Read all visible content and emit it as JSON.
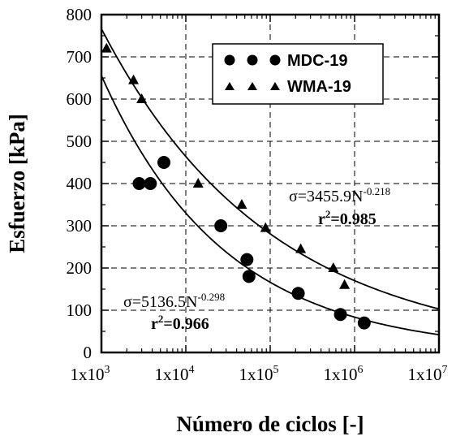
{
  "chart_data": {
    "type": "scatter",
    "xlabel": "Número de ciclos [-]",
    "ylabel": "Esfuerzo [kPa]",
    "xscale": "log",
    "xlim": [
      1000,
      10000000
    ],
    "ylim": [
      0,
      800
    ],
    "grid": true,
    "legend_position": "top-right",
    "x_tick_labels": [
      {
        "base": "1x10",
        "exp": "3"
      },
      {
        "base": "1x10",
        "exp": "4"
      },
      {
        "base": "1x10",
        "exp": "5"
      },
      {
        "base": "1x10",
        "exp": "6"
      },
      {
        "base": "1x10",
        "exp": "7"
      }
    ],
    "y_tick_labels": [
      "0",
      "100",
      "200",
      "300",
      "400",
      "500",
      "600",
      "700",
      "800"
    ],
    "series": [
      {
        "name": "MDC-19",
        "marker": "circle",
        "points": [
          {
            "x": 2800,
            "y": 400
          },
          {
            "x": 3800,
            "y": 400
          },
          {
            "x": 5500,
            "y": 450
          },
          {
            "x": 26000,
            "y": 300
          },
          {
            "x": 53000,
            "y": 220
          },
          {
            "x": 56000,
            "y": 180
          },
          {
            "x": 215000,
            "y": 140
          },
          {
            "x": 680000,
            "y": 90
          },
          {
            "x": 1300000,
            "y": 70
          }
        ]
      },
      {
        "name": "WMA-19",
        "marker": "triangle",
        "points": [
          {
            "x": 1150,
            "y": 720
          },
          {
            "x": 2400,
            "y": 645
          },
          {
            "x": 3000,
            "y": 600
          },
          {
            "x": 14000,
            "y": 400
          },
          {
            "x": 46000,
            "y": 350
          },
          {
            "x": 88000,
            "y": 295
          },
          {
            "x": 230000,
            "y": 245
          },
          {
            "x": 560000,
            "y": 200
          },
          {
            "x": 760000,
            "y": 160
          }
        ]
      }
    ],
    "fits": [
      {
        "series": "MDC-19",
        "a": 5136.5,
        "b": -0.298
      },
      {
        "series": "WMA-19",
        "a": 3455.9,
        "b": -0.218
      }
    ],
    "annotations": {
      "wma_eq_prefix": "σ=3455.9N",
      "wma_eq_exp": "-0.218",
      "wma_r2_prefix": "r",
      "wma_r2_sup": "2",
      "wma_r2_value": "=0.985",
      "mdc_eq_prefix": "σ=5136.5N",
      "mdc_eq_exp": "-0.298",
      "mdc_r2_prefix": "r",
      "mdc_r2_sup": "2",
      "mdc_r2_value": "=0.966"
    }
  }
}
